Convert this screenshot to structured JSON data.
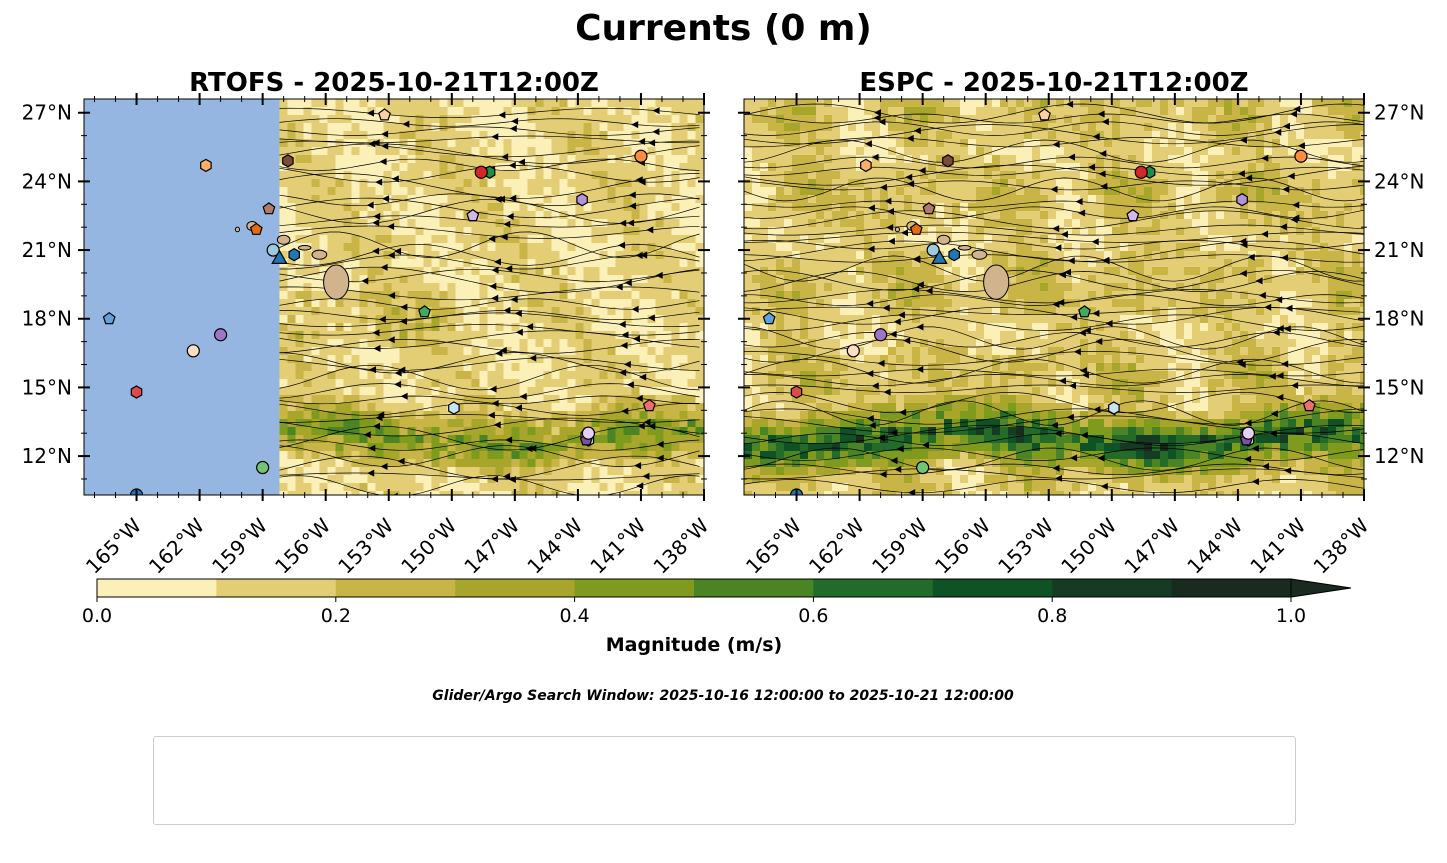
{
  "figure": {
    "title": "Currents (0 m)",
    "search_window": "Glider/Argo Search Window: 2025-10-16 12:00:00 to 2025-10-21 12:00:00"
  },
  "chart_data": [
    {
      "type": "heatmap",
      "title": "RTOFS - 2025-10-21T12:00Z",
      "xlim": [
        -167.5,
        -138
      ],
      "ylim": [
        10.3,
        27.6
      ],
      "x_ticks": [
        "165°W",
        "162°W",
        "159°W",
        "156°W",
        "153°W",
        "150°W",
        "147°W",
        "144°W",
        "141°W",
        "138°W"
      ],
      "y_ticks": [
        "12°N",
        "15°N",
        "18°N",
        "21°N",
        "24°N",
        "27°N"
      ],
      "y_tick_side": "left",
      "data_west_limit": -158.2,
      "no_data_color": "#96b6e2",
      "streamlines": true,
      "mean_flow": "westward",
      "strong_current_band_lat": [
        12.0,
        14.0
      ]
    },
    {
      "type": "heatmap",
      "title": "ESPC - 2025-10-21T12:00Z",
      "xlim": [
        -167.5,
        -138
      ],
      "ylim": [
        10.3,
        27.6
      ],
      "x_ticks": [
        "165°W",
        "162°W",
        "159°W",
        "156°W",
        "153°W",
        "150°W",
        "147°W",
        "144°W",
        "141°W",
        "138°W"
      ],
      "y_ticks": [
        "12°N",
        "15°N",
        "18°N",
        "21°N",
        "24°N",
        "27°N"
      ],
      "y_tick_side": "right",
      "data_west_limit": -167.5,
      "streamlines": true,
      "mean_flow": "westward",
      "strong_current_band_lat": [
        12.0,
        14.0
      ]
    }
  ],
  "colorbar": {
    "label": "Magnitude (m/s)",
    "ticks": [
      "0.0",
      "0.2",
      "0.4",
      "0.6",
      "0.8",
      "1.0"
    ],
    "boundaries": [
      0,
      0.1,
      0.2,
      0.3,
      0.4,
      0.5,
      0.6,
      0.7,
      0.8,
      0.9,
      1.0
    ],
    "colors": [
      "#fbf1b8",
      "#e3cd75",
      "#c9b545",
      "#a7a62a",
      "#7f9b1d",
      "#4a8425",
      "#226b28",
      "#0e5226",
      "#153b24",
      "#192a1f"
    ],
    "extend": "max"
  },
  "platforms": [
    {
      "id": "1902195",
      "marker": "circle",
      "color": "#1f77b4",
      "lon": -165.0,
      "lat": 10.3
    },
    {
      "id": "1902685",
      "marker": "hexagon",
      "color": "#1f77b4",
      "lon": -157.5,
      "lat": 20.8
    },
    {
      "id": "2903863",
      "marker": "pentagon",
      "color": "#5fa2dd",
      "lon": -166.3,
      "lat": 18.0
    },
    {
      "id": "3902559",
      "marker": "circle",
      "color": "#9ecae1",
      "lon": -158.5,
      "lat": 21.0
    },
    {
      "id": "3902561",
      "marker": "hexagon",
      "color": "#c6e4f5",
      "lon": -149.9,
      "lat": 14.1
    },
    {
      "id": "4903320",
      "marker": "pentagon",
      "color": "#e66a0a",
      "lon": -159.3,
      "lat": 21.9
    },
    {
      "id": "4903321",
      "marker": "circle",
      "color": "#fd8d3c",
      "lon": -141.0,
      "lat": 25.1
    },
    {
      "id": "4903507",
      "marker": "hexagon",
      "color": "#fdae6b",
      "lon": -161.7,
      "lat": 24.7
    },
    {
      "id": "5904976",
      "marker": "pentagon",
      "color": "#fdd0a2",
      "lon": -153.2,
      "lat": 26.9
    },
    {
      "id": "5905275",
      "marker": "circle",
      "color": "#feddc0",
      "lon": -162.3,
      "lat": 16.6
    },
    {
      "id": "5905736",
      "marker": "hexagon",
      "color": "#238b45",
      "lon": -148.2,
      "lat": 24.4
    },
    {
      "id": "5905853",
      "marker": "pentagon",
      "color": "#41ab5d",
      "lon": -151.3,
      "lat": 18.3
    },
    {
      "id": "5906095",
      "marker": "circle",
      "color": "#74c476",
      "lon": -159.0,
      "lat": 11.5
    },
    {
      "id": "5906100",
      "marker": "hexagon",
      "color": "#a1d99b",
      "lon": -143.5,
      "lat": 12.7
    },
    {
      "id": "5906155",
      "marker": "pentagon",
      "color": "#e5f5e0",
      "lon": -149.0,
      "lat": 22.5
    },
    {
      "id": "5906156",
      "marker": "circle",
      "color": "#d62728",
      "lon": -148.6,
      "lat": 24.4
    },
    {
      "id": "5906402",
      "marker": "hexagon",
      "color": "#de4a4a",
      "lon": -165.0,
      "lat": 14.8
    },
    {
      "id": "5906471",
      "marker": "pentagon",
      "color": "#f06e6e",
      "lon": -140.6,
      "lat": 14.2
    },
    {
      "id": "5906514",
      "marker": "circle",
      "color": "#f4a3a3",
      "lon": -143.5,
      "lat": 13.0
    },
    {
      "id": "5906753",
      "marker": "hexagon",
      "color": "#f7c1b8",
      "lon": -143.6,
      "lat": 12.9
    },
    {
      "id": "5906756",
      "marker": "pentagon",
      "color": "#7b4fa8",
      "lon": -143.6,
      "lat": 12.7
    },
    {
      "id": "5906757",
      "marker": "circle",
      "color": "#9e76c8",
      "lon": -161.0,
      "lat": 17.3
    },
    {
      "id": "5906811",
      "marker": "hexagon",
      "color": "#b393dd",
      "lon": -143.8,
      "lat": 23.2
    },
    {
      "id": "5907061",
      "marker": "pentagon",
      "color": "#d2b8ee",
      "lon": -149.0,
      "lat": 22.5
    },
    {
      "id": "6990589",
      "marker": "circle",
      "color": "#e4d1f5",
      "lon": -143.5,
      "lat": 13.0
    },
    {
      "id": "7900877",
      "marker": "hexagon",
      "color": "#7a4b36",
      "lon": -157.8,
      "lat": 24.9
    },
    {
      "id": "7901106",
      "marker": "pentagon",
      "color": "#b07a66",
      "lon": -158.7,
      "lat": 22.8
    },
    {
      "id": "sg626",
      "marker": "triangle",
      "color": "#1f77b4",
      "lon": -158.2,
      "lat": 20.6
    }
  ],
  "colors": {
    "land": "#d2b48c",
    "background": "#ffffff"
  }
}
